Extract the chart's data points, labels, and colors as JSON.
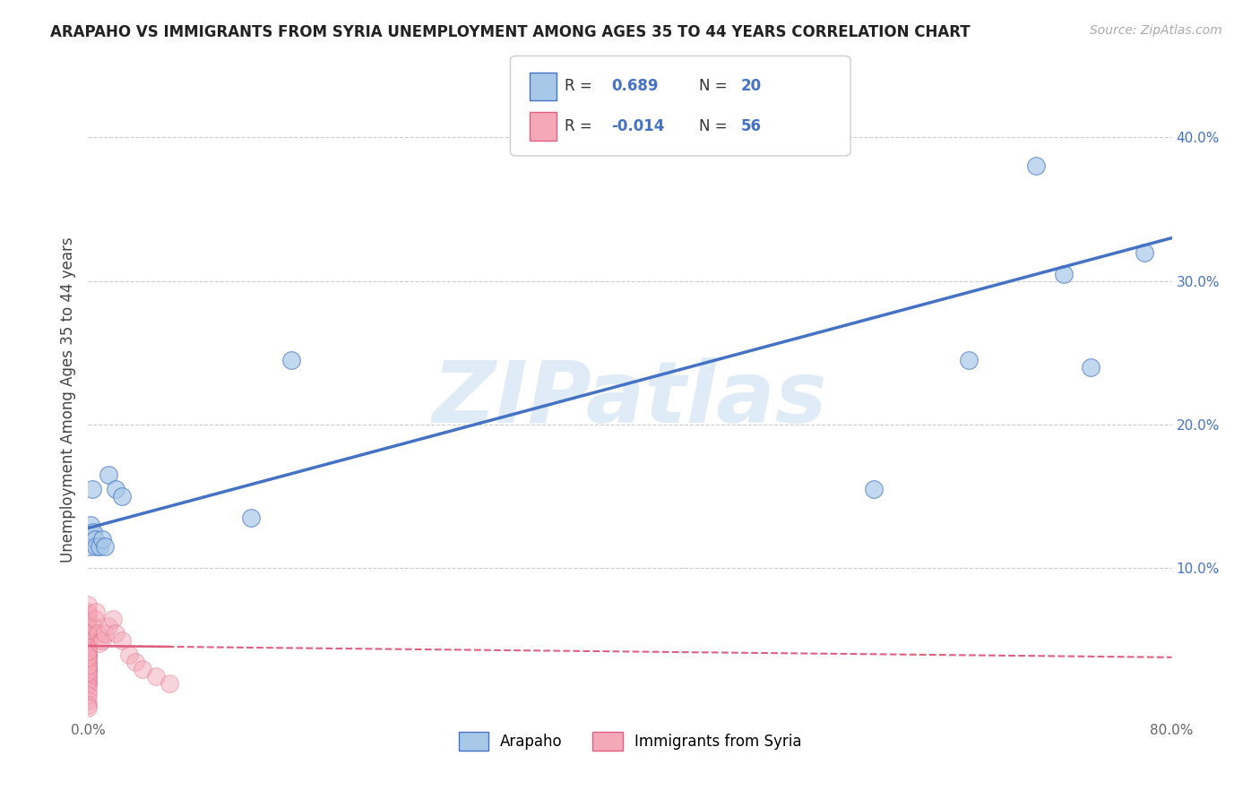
{
  "title": "ARAPAHO VS IMMIGRANTS FROM SYRIA UNEMPLOYMENT AMONG AGES 35 TO 44 YEARS CORRELATION CHART",
  "source": "Source: ZipAtlas.com",
  "ylabel": "Unemployment Among Ages 35 to 44 years",
  "watermark": "ZIPatlas",
  "arapaho_color": "#a8c8e8",
  "syria_color": "#f4a8b8",
  "arapaho_line_color": "#4472c4",
  "syria_line_color": "#e06080",
  "xlim": [
    0.0,
    0.8
  ],
  "ylim": [
    -0.005,
    0.44
  ],
  "x_ticks": [
    0.0,
    0.8
  ],
  "x_tick_labels": [
    "0.0%",
    "80.0%"
  ],
  "y_ticks": [
    0.1,
    0.2,
    0.3,
    0.4
  ],
  "y_tick_labels": [
    "10.0%",
    "20.0%",
    "30.0%",
    "40.0%"
  ],
  "background_color": "#ffffff",
  "grid_color": "#cccccc",
  "arapaho_x": [
    0.001,
    0.002,
    0.003,
    0.004,
    0.005,
    0.006,
    0.008,
    0.01,
    0.012,
    0.015,
    0.02,
    0.025,
    0.12,
    0.15,
    0.58,
    0.65,
    0.7,
    0.72,
    0.74,
    0.78
  ],
  "arapaho_y": [
    0.115,
    0.13,
    0.155,
    0.125,
    0.12,
    0.115,
    0.115,
    0.12,
    0.115,
    0.165,
    0.155,
    0.15,
    0.135,
    0.245,
    0.155,
    0.245,
    0.38,
    0.305,
    0.24,
    0.32
  ],
  "syria_x": [
    0.0,
    0.0,
    0.0,
    0.0,
    0.0,
    0.0,
    0.0,
    0.0,
    0.0,
    0.0,
    0.0,
    0.0,
    0.0,
    0.0,
    0.0,
    0.0,
    0.0,
    0.0,
    0.0,
    0.0,
    0.0,
    0.0,
    0.0,
    0.0,
    0.0,
    0.0,
    0.0,
    0.0,
    0.0,
    0.0,
    0.0,
    0.0,
    0.0,
    0.0,
    0.0,
    0.0,
    0.0,
    0.0,
    0.0,
    0.0,
    0.004,
    0.005,
    0.006,
    0.007,
    0.008,
    0.01,
    0.012,
    0.015,
    0.018,
    0.02,
    0.025,
    0.03,
    0.035,
    0.04,
    0.05,
    0.06
  ],
  "syria_y": [
    0.02,
    0.022,
    0.025,
    0.028,
    0.03,
    0.032,
    0.035,
    0.038,
    0.04,
    0.042,
    0.045,
    0.048,
    0.05,
    0.052,
    0.055,
    0.058,
    0.06,
    0.062,
    0.065,
    0.068,
    0.07,
    0.075,
    0.055,
    0.05,
    0.045,
    0.04,
    0.035,
    0.03,
    0.025,
    0.022,
    0.018,
    0.015,
    0.012,
    0.008,
    0.005,
    0.003,
    0.028,
    0.032,
    0.038,
    0.042,
    0.06,
    0.065,
    0.07,
    0.055,
    0.048,
    0.05,
    0.055,
    0.06,
    0.065,
    0.055,
    0.05,
    0.04,
    0.035,
    0.03,
    0.025,
    0.02
  ],
  "blue_line_x0": 0.0,
  "blue_line_y0": 0.128,
  "blue_line_x1": 0.8,
  "blue_line_y1": 0.33,
  "pink_line_x0": 0.0,
  "pink_line_y0": 0.046,
  "pink_line_x1": 0.8,
  "pink_line_y1": 0.038
}
